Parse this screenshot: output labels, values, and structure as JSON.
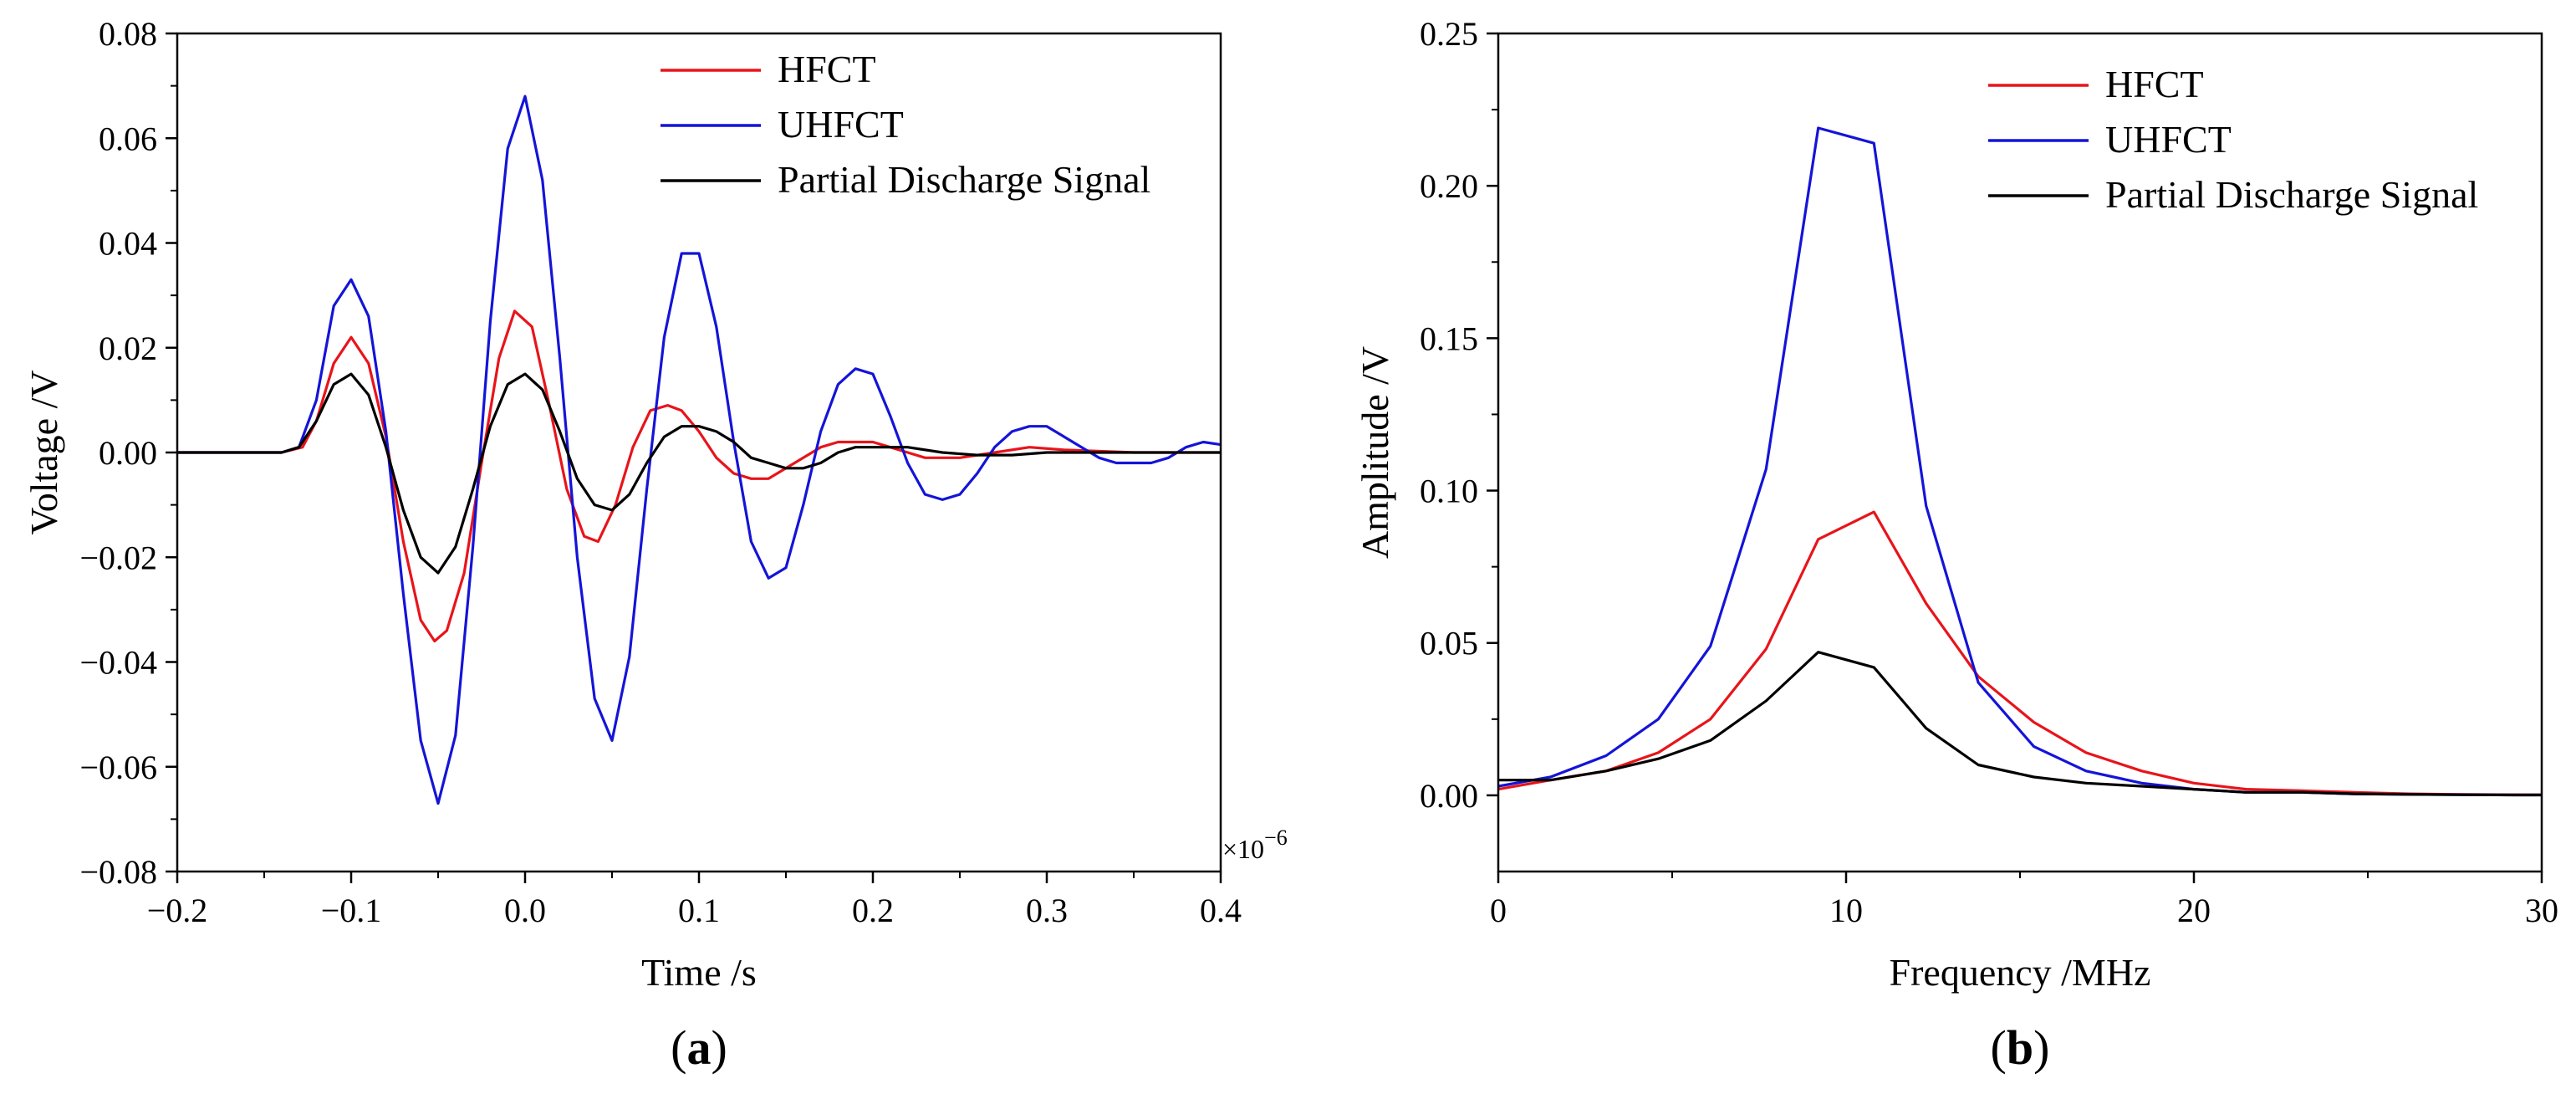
{
  "chart_data": [
    {
      "type": "line",
      "panel_label": {
        "open": "(",
        "letter": "a",
        "close": ")"
      },
      "xlabel": "Time /s",
      "ylabel": "Voltage /V",
      "x_multiplier_label": {
        "base": "×10",
        "exponent": "−6"
      },
      "xlim": [
        -0.2,
        0.4
      ],
      "ylim": [
        -0.08,
        0.08
      ],
      "x_ticks": [
        -0.2,
        -0.1,
        0.0,
        0.1,
        0.2,
        0.3,
        0.4
      ],
      "x_tick_labels": [
        "−0.2",
        "−0.1",
        "0.0",
        "0.1",
        "0.2",
        "0.3",
        "0.4"
      ],
      "y_ticks": [
        -0.08,
        -0.06,
        -0.04,
        -0.02,
        0.0,
        0.02,
        0.04,
        0.06,
        0.08
      ],
      "y_tick_labels": [
        "−0.08",
        "−0.06",
        "−0.04",
        "−0.02",
        "0.00",
        "0.02",
        "0.04",
        "0.06",
        "0.08"
      ],
      "legend_position": "top-right",
      "grid": false,
      "series": [
        {
          "name": "HFCT",
          "color": "#e8141a",
          "x": [
            -0.2,
            -0.14,
            -0.128,
            -0.12,
            -0.11,
            -0.1,
            -0.09,
            -0.08,
            -0.07,
            -0.06,
            -0.052,
            -0.045,
            -0.035,
            -0.025,
            -0.015,
            -0.006,
            0.004,
            0.014,
            0.024,
            0.034,
            0.042,
            0.052,
            0.062,
            0.072,
            0.082,
            0.09,
            0.1,
            0.11,
            0.12,
            0.13,
            0.14,
            0.15,
            0.16,
            0.17,
            0.18,
            0.19,
            0.2,
            0.21,
            0.22,
            0.23,
            0.24,
            0.25,
            0.27,
            0.29,
            0.31,
            0.35,
            0.4
          ],
          "y": [
            0,
            0,
            0.001,
            0.006,
            0.017,
            0.022,
            0.017,
            0.003,
            -0.017,
            -0.032,
            -0.036,
            -0.034,
            -0.023,
            -0.002,
            0.018,
            0.027,
            0.024,
            0.009,
            -0.007,
            -0.016,
            -0.017,
            -0.01,
            0.001,
            0.008,
            0.009,
            0.008,
            0.004,
            -0.001,
            -0.004,
            -0.005,
            -0.005,
            -0.003,
            -0.001,
            0.001,
            0.002,
            0.002,
            0.002,
            0.001,
            0,
            -0.001,
            -0.001,
            -0.001,
            0,
            0.001,
            0.0005,
            0,
            0
          ]
        },
        {
          "name": "UHFCT",
          "color": "#1414d8",
          "x": [
            -0.2,
            -0.14,
            -0.13,
            -0.12,
            -0.11,
            -0.1,
            -0.09,
            -0.08,
            -0.07,
            -0.06,
            -0.05,
            -0.04,
            -0.03,
            -0.02,
            -0.01,
            0,
            0.01,
            0.02,
            0.03,
            0.04,
            0.05,
            0.06,
            0.07,
            0.08,
            0.09,
            0.1,
            0.11,
            0.12,
            0.13,
            0.14,
            0.15,
            0.16,
            0.17,
            0.18,
            0.19,
            0.2,
            0.21,
            0.22,
            0.23,
            0.24,
            0.25,
            0.26,
            0.27,
            0.28,
            0.29,
            0.3,
            0.31,
            0.32,
            0.33,
            0.34,
            0.35,
            0.36,
            0.37,
            0.38,
            0.39,
            0.4
          ],
          "y": [
            0,
            0,
            0.001,
            0.01,
            0.028,
            0.033,
            0.026,
            0.004,
            -0.027,
            -0.055,
            -0.067,
            -0.054,
            -0.018,
            0.025,
            0.058,
            0.068,
            0.052,
            0.018,
            -0.02,
            -0.047,
            -0.055,
            -0.039,
            -0.007,
            0.022,
            0.038,
            0.038,
            0.024,
            0.002,
            -0.017,
            -0.024,
            -0.022,
            -0.01,
            0.004,
            0.013,
            0.016,
            0.015,
            0.007,
            -0.002,
            -0.008,
            -0.009,
            -0.008,
            -0.004,
            0.001,
            0.004,
            0.005,
            0.005,
            0.003,
            0.001,
            -0.001,
            -0.002,
            -0.002,
            -0.002,
            -0.001,
            0.001,
            0.002,
            0.0015
          ]
        },
        {
          "name": "Partial Discharge Signal",
          "color": "#000000",
          "x": [
            -0.2,
            -0.14,
            -0.13,
            -0.12,
            -0.11,
            -0.1,
            -0.09,
            -0.08,
            -0.07,
            -0.06,
            -0.05,
            -0.04,
            -0.03,
            -0.02,
            -0.01,
            0,
            0.01,
            0.02,
            0.03,
            0.04,
            0.05,
            0.06,
            0.07,
            0.08,
            0.09,
            0.1,
            0.11,
            0.12,
            0.13,
            0.14,
            0.15,
            0.16,
            0.17,
            0.18,
            0.19,
            0.2,
            0.22,
            0.24,
            0.26,
            0.28,
            0.3,
            0.32,
            0.35,
            0.4
          ],
          "y": [
            0,
            0,
            0.001,
            0.006,
            0.013,
            0.015,
            0.011,
            0.001,
            -0.011,
            -0.02,
            -0.023,
            -0.018,
            -0.007,
            0.005,
            0.013,
            0.015,
            0.012,
            0.004,
            -0.005,
            -0.01,
            -0.011,
            -0.008,
            -0.002,
            0.003,
            0.005,
            0.005,
            0.004,
            0.002,
            -0.001,
            -0.002,
            -0.003,
            -0.003,
            -0.002,
            0,
            0.001,
            0.001,
            0.001,
            0,
            -0.0005,
            -0.0005,
            0,
            0,
            0,
            0
          ]
        }
      ]
    },
    {
      "type": "line",
      "panel_label": {
        "open": "(",
        "letter": "b",
        "close": ")"
      },
      "xlabel": "Frequency /MHz",
      "ylabel": "Amplitude /V",
      "xlim": [
        0,
        30
      ],
      "ylim": [
        -0.025,
        0.25
      ],
      "x_ticks": [
        0,
        10,
        20,
        30
      ],
      "x_tick_labels": [
        "0",
        "10",
        "20",
        "30"
      ],
      "y_ticks": [
        0.0,
        0.05,
        0.1,
        0.15,
        0.2,
        0.25
      ],
      "y_tick_labels": [
        "0.00",
        "0.05",
        "0.10",
        "0.15",
        "0.20",
        "0.25"
      ],
      "legend_position": "top-right",
      "grid": false,
      "series": [
        {
          "name": "HFCT",
          "color": "#e8141a",
          "x": [
            0,
            1.5,
            3.1,
            4.6,
            6.1,
            7.7,
            9.2,
            10.8,
            12.3,
            13.8,
            15.4,
            16.9,
            18.5,
            20,
            21.5,
            23.1,
            24.6,
            26.2,
            27.7,
            29.2,
            30
          ],
          "y": [
            0.002,
            0.005,
            0.008,
            0.014,
            0.025,
            0.048,
            0.084,
            0.093,
            0.063,
            0.039,
            0.024,
            0.014,
            0.008,
            0.004,
            0.002,
            0.0015,
            0.001,
            0.0005,
            0.0003,
            0.0002,
            0.0002
          ]
        },
        {
          "name": "UHFCT",
          "color": "#1414d8",
          "x": [
            0,
            1.5,
            3.1,
            4.6,
            6.1,
            7.7,
            9.2,
            10.8,
            12.3,
            13.8,
            15.4,
            16.9,
            18.5,
            20,
            21.5,
            23.1,
            24.6,
            26.2,
            27.7,
            29.2,
            30
          ],
          "y": [
            0.003,
            0.006,
            0.013,
            0.025,
            0.049,
            0.107,
            0.219,
            0.214,
            0.095,
            0.037,
            0.016,
            0.008,
            0.004,
            0.002,
            0.001,
            0.001,
            0.0005,
            0.0003,
            0.0002,
            0.0001,
            0.0001
          ]
        },
        {
          "name": "Partial Discharge Signal",
          "color": "#000000",
          "x": [
            0,
            1.5,
            3.1,
            4.6,
            6.1,
            7.7,
            9.2,
            10.8,
            12.3,
            13.8,
            15.4,
            16.9,
            18.5,
            20,
            21.5,
            23.1,
            24.6,
            26.2,
            27.7,
            29.2,
            30
          ],
          "y": [
            0.005,
            0.005,
            0.008,
            0.012,
            0.018,
            0.031,
            0.047,
            0.042,
            0.022,
            0.01,
            0.006,
            0.004,
            0.003,
            0.002,
            0.001,
            0.001,
            0.0005,
            0.0003,
            0.0002,
            0.0001,
            0.0001
          ]
        }
      ]
    }
  ]
}
